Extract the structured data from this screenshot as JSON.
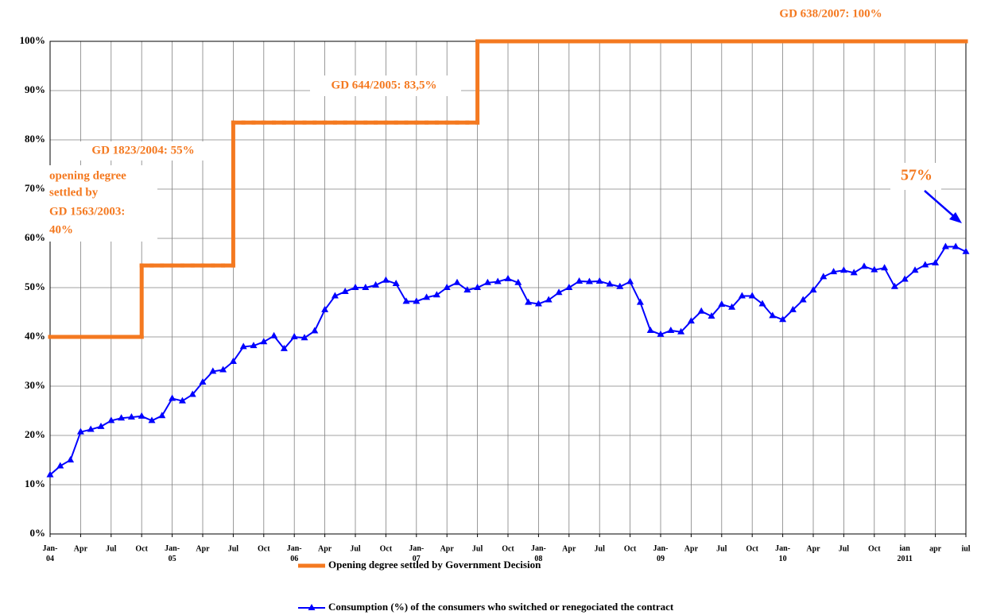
{
  "chart_data": {
    "type": "line",
    "categories": [
      "Jan-\n04",
      null,
      null,
      "Apr",
      null,
      null,
      "Jul",
      null,
      null,
      "Oct",
      null,
      null,
      "Jan-\n05",
      null,
      null,
      "Apr",
      null,
      null,
      "Jul",
      null,
      null,
      "Oct",
      null,
      null,
      "Jan-\n06",
      null,
      null,
      "Apr",
      null,
      null,
      "Jul",
      null,
      null,
      "Oct",
      null,
      null,
      "Jan-\n07",
      null,
      null,
      "Apr",
      null,
      null,
      "Jul",
      null,
      null,
      "Oct",
      null,
      null,
      "Jan-\n08",
      null,
      null,
      "Apr",
      null,
      null,
      "Jul",
      null,
      null,
      "Oct",
      null,
      null,
      "Jan-\n09",
      null,
      null,
      "Apr",
      null,
      null,
      "Jul",
      null,
      null,
      "Oct",
      null,
      null,
      "Jan-\n10",
      null,
      null,
      "Apr",
      null,
      null,
      "Jul",
      null,
      null,
      "Oct",
      null,
      null,
      "ian\n2011",
      null,
      null,
      "apr",
      null,
      null,
      "iul"
    ],
    "series": [
      {
        "name": "Opening degree settled by Government Decision",
        "color": "#f47920",
        "step": true,
        "values": [
          40,
          40,
          40,
          40,
          40,
          40,
          40,
          40,
          40,
          54.5,
          54.5,
          54.5,
          54.5,
          54.5,
          54.5,
          54.5,
          54.5,
          54.5,
          83.5,
          83.5,
          83.5,
          83.5,
          83.5,
          83.5,
          83.5,
          83.5,
          83.5,
          83.5,
          83.5,
          83.5,
          83.5,
          83.5,
          83.5,
          83.5,
          83.5,
          83.5,
          83.5,
          83.5,
          83.5,
          83.5,
          83.5,
          83.5,
          100,
          100,
          100,
          100,
          100,
          100,
          100,
          100,
          100,
          100,
          100,
          100,
          100,
          100,
          100,
          100,
          100,
          100,
          100,
          100,
          100,
          100,
          100,
          100,
          100,
          100,
          100,
          100,
          100,
          100,
          100,
          100,
          100,
          100,
          100,
          100,
          100,
          100,
          100,
          100,
          100,
          100,
          100,
          100,
          100,
          100,
          100,
          100,
          100
        ]
      },
      {
        "name": "Consumption (%) of the consumers who switched or renegociated the contract",
        "color": "#0000ff",
        "marker": "triangle",
        "values": [
          12,
          13.8,
          15,
          20.7,
          21.2,
          21.8,
          23,
          23.5,
          23.7,
          23.9,
          23,
          24,
          27.5,
          27,
          28.3,
          30.8,
          33,
          33.3,
          35,
          38,
          38.2,
          39,
          40.2,
          37.6,
          40,
          39.8,
          41.2,
          45.5,
          48.3,
          49.2,
          50,
          50,
          50.5,
          51.5,
          50.8,
          47.2,
          47.2,
          48,
          48.5,
          50,
          51,
          49.5,
          50,
          51,
          51.2,
          51.8,
          51,
          47,
          46.7,
          47.5,
          49,
          50,
          51.3,
          51.2,
          51.3,
          50.7,
          50.2,
          51.2,
          47,
          41.3,
          40.5,
          41.3,
          41,
          43.2,
          45.2,
          44.2,
          46.6,
          46,
          48.3,
          48.3,
          46.7,
          44.3,
          43.5,
          45.5,
          47.5,
          49.5,
          52.2,
          53.2,
          53.5,
          53,
          54.3,
          53.6,
          54,
          50.2,
          51.7,
          53.5,
          54.6,
          55,
          58.3,
          58.3,
          57.3
        ]
      }
    ],
    "ylim": [
      0,
      100
    ],
    "yticks": [
      {
        "value": 0,
        "label": "0%"
      },
      {
        "value": 10,
        "label": "10%"
      },
      {
        "value": 20,
        "label": "20%"
      },
      {
        "value": 30,
        "label": "30%"
      },
      {
        "value": 40,
        "label": "40%"
      },
      {
        "value": 50,
        "label": "50%"
      },
      {
        "value": 60,
        "label": "60%"
      },
      {
        "value": 70,
        "label": "70%"
      },
      {
        "value": 80,
        "label": "80%"
      },
      {
        "value": 90,
        "label": "90%"
      },
      {
        "value": 100,
        "label": "100%"
      }
    ],
    "grid": true,
    "annotations": [
      "GD 638/2007: 100%",
      "GD 644/2005:  83,5%",
      "GD 1823/2004:  55%",
      "opening degree",
      " settled by",
      "GD 1563/2003:",
      "40%",
      "57%"
    ]
  }
}
